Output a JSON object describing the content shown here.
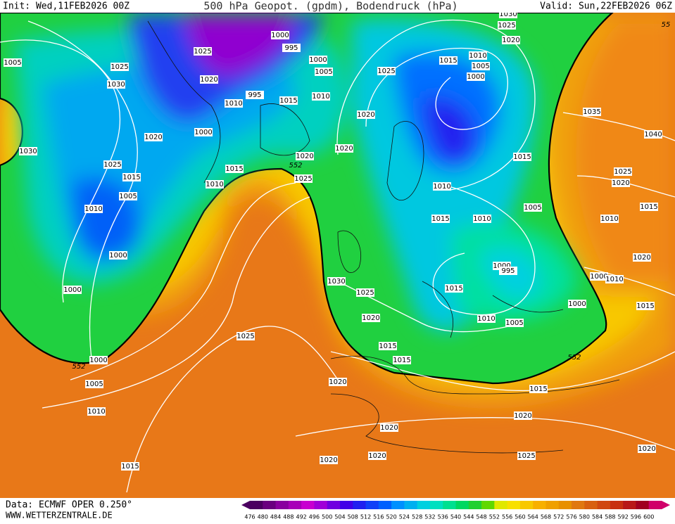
{
  "header": {
    "init": "Init: Wed,11FEB2026 00Z",
    "title": "500 hPa Geopot. (gpdm), Bodendruck (hPa)",
    "valid": "Valid: Sun,22FEB2026 06Z"
  },
  "footer": {
    "source": "Data: ECMWF OPER 0.250°",
    "site": "WWW.WETTERZENTRALE.DE"
  },
  "legend": {
    "levels": [
      "476",
      "480",
      "484",
      "488",
      "492",
      "496",
      "500",
      "504",
      "508",
      "512",
      "516",
      "520",
      "524",
      "528",
      "532",
      "536",
      "540",
      "544",
      "548",
      "552",
      "556",
      "560",
      "564",
      "568",
      "572",
      "576",
      "580",
      "584",
      "588",
      "592",
      "596",
      "600"
    ],
    "colors": [
      "#4b0060",
      "#6a007f",
      "#8a009f",
      "#a800b8",
      "#c800d0",
      "#a000d8",
      "#7000e0",
      "#4000e8",
      "#2020f0",
      "#1040f8",
      "#0060ff",
      "#0090ff",
      "#00b0f0",
      "#00d0e0",
      "#00e0c0",
      "#00e090",
      "#00d860",
      "#20d030",
      "#60d800",
      "#e0e800",
      "#f8e000",
      "#f8c800",
      "#f8b000",
      "#f0a000",
      "#e89000",
      "#e07810",
      "#d86010",
      "#d04810",
      "#c83010",
      "#b81818",
      "#a00020",
      "#d0006a"
    ]
  },
  "isobars": {
    "labels": [
      "1000",
      "1025",
      "995",
      "1000",
      "1005",
      "995",
      "1020",
      "1010",
      "1015",
      "1010",
      "1000",
      "1020",
      "1025",
      "1030",
      "1005",
      "1030",
      "1025",
      "1015",
      "1005",
      "1010",
      "1000",
      "1000",
      "1000",
      "1005",
      "1010",
      "1015",
      "1025",
      "1020",
      "1030",
      "1025",
      "1020",
      "1015",
      "1015",
      "1020",
      "1020",
      "1020",
      "1025",
      "1020",
      "1015",
      "1020",
      "1015",
      "1010",
      "1020",
      "1025",
      "1020",
      "1020",
      "1025",
      "1015",
      "1010",
      "1005",
      "1000",
      "1025",
      "1020",
      "1015",
      "1010",
      "1015",
      "1010",
      "1005",
      "1000",
      "995",
      "1015",
      "1010",
      "1005",
      "1000",
      "1000",
      "1010",
      "1015",
      "1020",
      "1010",
      "1015",
      "1025",
      "1020",
      "1035",
      "1040",
      "1030"
    ],
    "contour_552": [
      "552",
      "552",
      "552",
      "55"
    ]
  }
}
